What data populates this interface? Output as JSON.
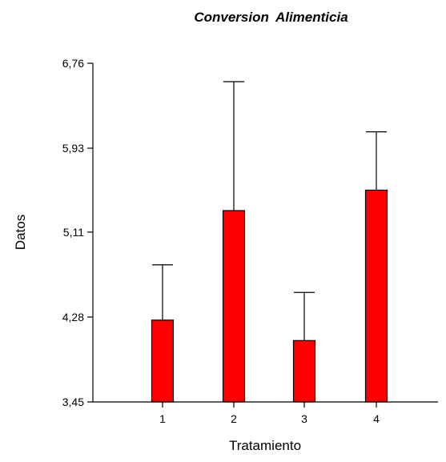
{
  "chart_data": {
    "type": "bar",
    "title": "Conversion  Alimenticia",
    "xlabel": "Tratamiento",
    "ylabel": "Datos",
    "categories": [
      "1",
      "2",
      "3",
      "4"
    ],
    "values": [
      4.25,
      5.32,
      4.05,
      5.52
    ],
    "error_upper": [
      4.79,
      6.58,
      4.52,
      6.09
    ],
    "ylim": [
      3.45,
      6.76
    ],
    "yticks": [
      "3,45",
      "4,28",
      "5,11",
      "5,93",
      "6,76"
    ],
    "ytick_values": [
      3.45,
      4.28,
      5.11,
      5.93,
      6.76
    ],
    "grid": false,
    "bar_color": "#ff0000",
    "edge_color": "#000000"
  }
}
